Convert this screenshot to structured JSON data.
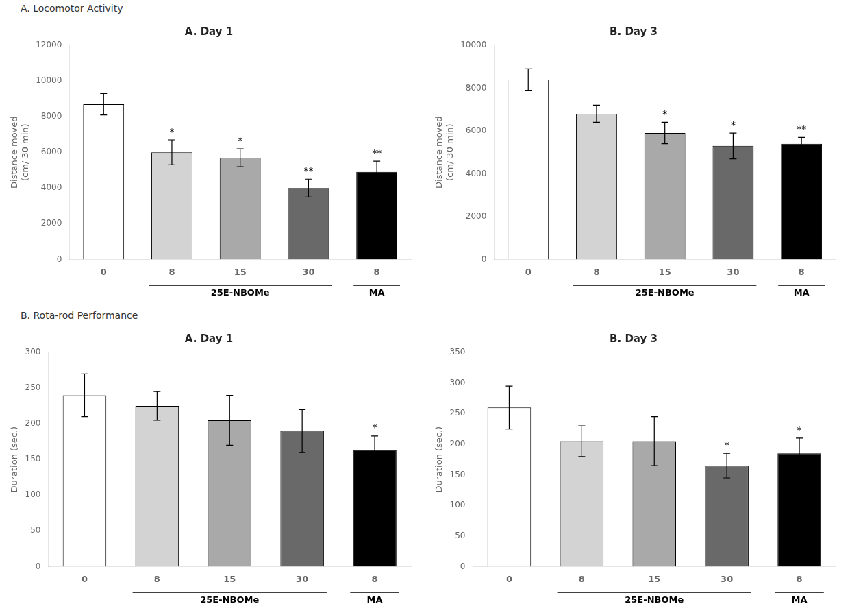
{
  "chart_data": [
    {
      "type": "bar",
      "subtitle": "A. Locomotor Activity",
      "title": "A. Day 1",
      "ylabel": "Distance moved\n(cm/ 30 min)",
      "categories": [
        "0",
        "8",
        "15",
        "30",
        "8"
      ],
      "groups": [
        null,
        "25E-NBOMe",
        "25E-NBOMe",
        "25E-NBOMe",
        "MA"
      ],
      "values": [
        8700,
        6000,
        5700,
        4000,
        4900
      ],
      "errors": [
        600,
        700,
        500,
        500,
        600
      ],
      "colors": [
        "#ffffff",
        "#d3d3d3",
        "#a9a9a9",
        "#696969",
        "#000000"
      ],
      "annotations": [
        null,
        "*",
        "*",
        "**",
        "**"
      ],
      "ylim": [
        0,
        12000
      ],
      "yticks": [
        0,
        2000,
        4000,
        6000,
        8000,
        10000,
        12000
      ],
      "grid": false
    },
    {
      "type": "bar",
      "title": "B. Day 3",
      "ylabel": "Distance moved\n(cm/ 30 min)",
      "categories": [
        "0",
        "8",
        "15",
        "30",
        "8"
      ],
      "groups": [
        null,
        "25E-NBOMe",
        "25E-NBOMe",
        "25E-NBOMe",
        "MA"
      ],
      "values": [
        8400,
        6800,
        5900,
        5300,
        5400
      ],
      "errors": [
        500,
        400,
        500,
        600,
        300
      ],
      "colors": [
        "#ffffff",
        "#d3d3d3",
        "#a9a9a9",
        "#696969",
        "#000000"
      ],
      "annotations": [
        null,
        null,
        "*",
        "*",
        "**"
      ],
      "ylim": [
        0,
        10000
      ],
      "yticks": [
        0,
        2000,
        4000,
        6000,
        8000,
        10000
      ],
      "grid": false
    },
    {
      "type": "bar",
      "subtitle": "B. Rota-rod Performance",
      "title": "A. Day 1",
      "ylabel": "Duration (sec.)",
      "categories": [
        "0",
        "8",
        "15",
        "30",
        "8"
      ],
      "groups": [
        null,
        "25E-NBOMe",
        "25E-NBOMe",
        "25E-NBOMe",
        "MA"
      ],
      "values": [
        240,
        225,
        205,
        190,
        163
      ],
      "errors": [
        30,
        20,
        35,
        30,
        20
      ],
      "colors": [
        "#ffffff",
        "#d3d3d3",
        "#a9a9a9",
        "#696969",
        "#000000"
      ],
      "annotations": [
        null,
        null,
        null,
        null,
        "*"
      ],
      "ylim": [
        0,
        300
      ],
      "yticks": [
        0,
        50,
        100,
        150,
        200,
        250,
        300
      ],
      "grid": false
    },
    {
      "type": "bar",
      "title": "B. Day 3",
      "ylabel": "Duration (sec.)",
      "categories": [
        "0",
        "8",
        "15",
        "30",
        "8"
      ],
      "groups": [
        null,
        "25E-NBOMe",
        "25E-NBOMe",
        "25E-NBOMe",
        "MA"
      ],
      "values": [
        260,
        205,
        205,
        165,
        185
      ],
      "errors": [
        35,
        25,
        40,
        20,
        25
      ],
      "colors": [
        "#ffffff",
        "#d3d3d3",
        "#a9a9a9",
        "#696969",
        "#000000"
      ],
      "annotations": [
        null,
        null,
        null,
        "*",
        "*"
      ],
      "ylim": [
        0,
        350
      ],
      "yticks": [
        0,
        50,
        100,
        150,
        200,
        250,
        300,
        350
      ],
      "grid": false
    }
  ]
}
